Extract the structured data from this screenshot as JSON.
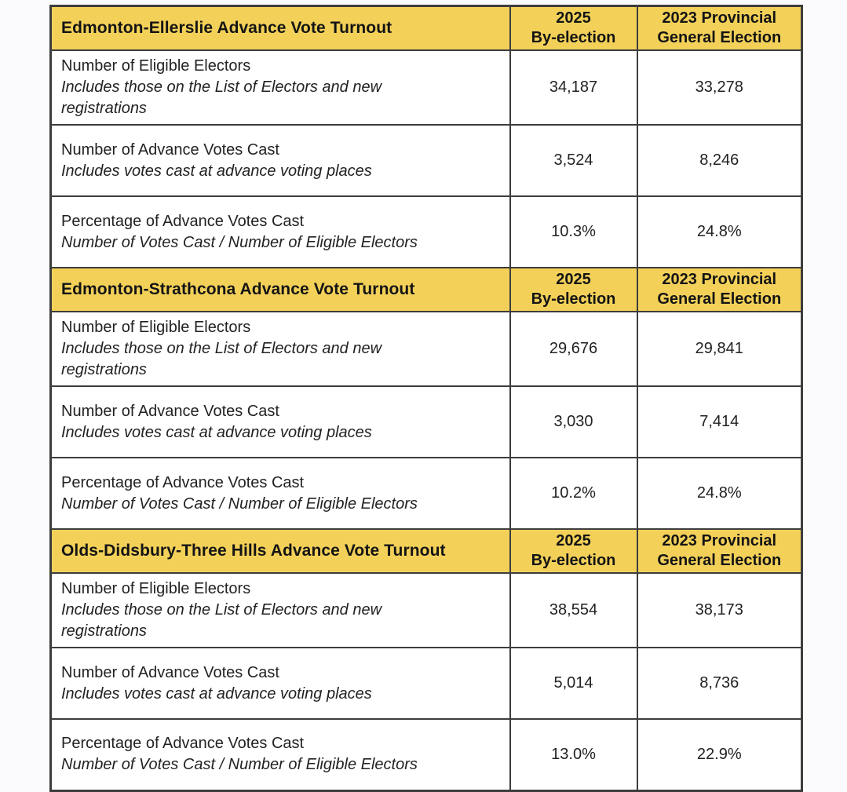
{
  "colors": {
    "header_bg": "#F3D159",
    "border": "#3d3d3d"
  },
  "columns": {
    "byelection": {
      "line1": "2025",
      "line2": "By-election"
    },
    "general": {
      "line1": "2023 Provincial",
      "line2": "General Election"
    }
  },
  "sections": [
    {
      "title": "Edmonton-Ellerslie Advance Vote Turnout",
      "rows": [
        {
          "label": "Number of Eligible Electors",
          "sublabel": "Includes those on the List of Electors and new registrations",
          "byelection": "34,187",
          "general": "33,278"
        },
        {
          "label": "Number of Advance Votes Cast",
          "sublabel": "Includes votes cast at advance voting places",
          "byelection": "3,524",
          "general": "8,246"
        },
        {
          "label": "Percentage of Advance Votes Cast",
          "sublabel": "Number of Votes Cast / Number of Eligible Electors",
          "byelection": "10.3%",
          "general": "24.8%"
        }
      ]
    },
    {
      "title": "Edmonton-Strathcona Advance Vote Turnout",
      "rows": [
        {
          "label": "Number of Eligible Electors",
          "sublabel": "Includes those on the List of Electors and new registrations",
          "byelection": "29,676",
          "general": "29,841"
        },
        {
          "label": "Number of Advance Votes Cast",
          "sublabel": "Includes votes cast at advance voting places",
          "byelection": "3,030",
          "general": "7,414"
        },
        {
          "label": "Percentage of Advance Votes Cast",
          "sublabel": "Number of Votes Cast / Number of Eligible Electors",
          "byelection": "10.2%",
          "general": "24.8%"
        }
      ]
    },
    {
      "title": "Olds-Didsbury-Three Hills Advance Vote Turnout",
      "rows": [
        {
          "label": "Number of Eligible Electors",
          "sublabel": "Includes those on the List of Electors and new registrations",
          "byelection": "38,554",
          "general": "38,173"
        },
        {
          "label": "Number of Advance Votes Cast",
          "sublabel": "Includes votes cast at advance voting places",
          "byelection": "5,014",
          "general": "8,736"
        },
        {
          "label": "Percentage of Advance Votes Cast",
          "sublabel": "Number of Votes Cast / Number of Eligible Electors",
          "byelection": "13.0%",
          "general": "22.9%"
        }
      ]
    }
  ]
}
